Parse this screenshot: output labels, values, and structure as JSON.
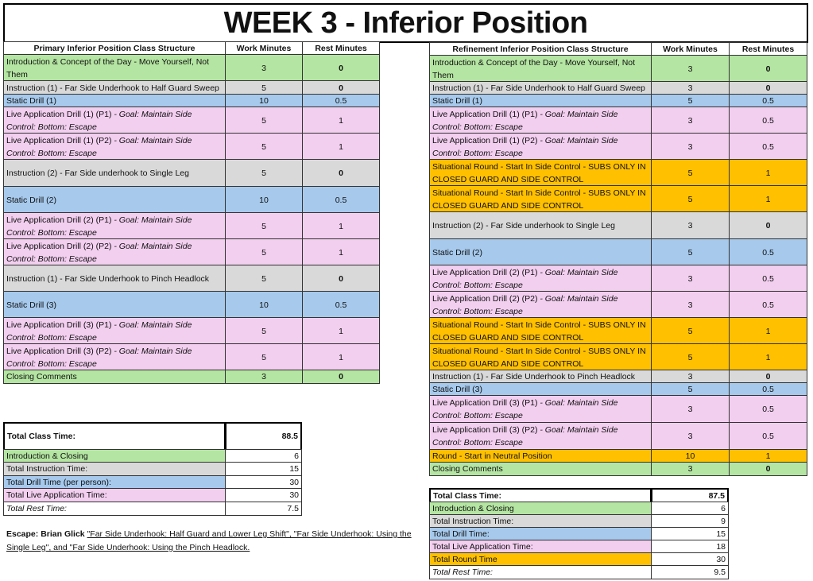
{
  "title": "WEEK 3 - Inferior Position",
  "colors": {
    "intro": "#b4e5a2",
    "instruction": "#d9d9d9",
    "drill": "#a6c9ec",
    "live": "#f2ceef",
    "round": "#ffc000",
    "rest": "#ffffff"
  },
  "primary": {
    "headers": [
      "Primary Inferior Position Class Structure",
      "Work Minutes",
      "Rest Minutes"
    ],
    "rows": [
      {
        "type": "intro",
        "label": "Introduction & Concept of the Day - Move Yourself, Not Them",
        "goal": "",
        "work": "3",
        "rest": "0"
      },
      {
        "type": "instruction",
        "label": "Instruction (1) - Far Side Underhook to Half Guard Sweep",
        "goal": "",
        "work": "5",
        "rest": "0"
      },
      {
        "type": "drill",
        "label": "Static Drill (1)",
        "goal": "",
        "work": "10",
        "rest": "0.5"
      },
      {
        "type": "live",
        "label": "Live Application Drill (1) (P1) ",
        "goal": " - Goal: Maintain Side Control: Bottom: Escape",
        "work": "5",
        "rest": "1"
      },
      {
        "type": "live",
        "label": "Live Application Drill (1) (P2) ",
        "goal": " - Goal: Maintain Side Control: Bottom: Escape",
        "work": "5",
        "rest": "1"
      },
      {
        "type": "instruction",
        "label": "Instruction (2) - Far Side underhook to Single Leg",
        "goal": "",
        "work": "5",
        "rest": "0"
      },
      {
        "type": "drill",
        "label": "Static Drill (2)",
        "goal": "",
        "work": "10",
        "rest": "0.5"
      },
      {
        "type": "live",
        "label": "Live Application Drill (2) (P1) ",
        "goal": " - Goal: Maintain Side Control: Bottom: Escape",
        "work": "5",
        "rest": "1"
      },
      {
        "type": "live",
        "label": "Live Application Drill (2) (P2) ",
        "goal": " - Goal: Maintain Side Control: Bottom: Escape",
        "work": "5",
        "rest": "1"
      },
      {
        "type": "instruction",
        "label": "Instruction (1) - Far Side Underhook to Pinch Headlock",
        "goal": "",
        "work": "5",
        "rest": "0"
      },
      {
        "type": "drill",
        "label": "Static Drill (3)",
        "goal": "",
        "work": "10",
        "rest": "0.5"
      },
      {
        "type": "live",
        "label": "Live Application Drill (3) (P1) ",
        "goal": " - Goal: Maintain Side Control: Bottom: Escape",
        "work": "5",
        "rest": "1"
      },
      {
        "type": "live",
        "label": "Live Application Drill (3) (P2) ",
        "goal": " - Goal: Maintain Side Control: Bottom: Escape",
        "work": "5",
        "rest": "1"
      },
      {
        "type": "intro",
        "label": "Closing Comments",
        "goal": "",
        "work": "3",
        "rest": "0"
      }
    ],
    "summary": {
      "total_label": "Total Class Time:",
      "total_value": "88.5",
      "rows": [
        {
          "type": "intro",
          "label": "Introduction & Closing",
          "value": "6"
        },
        {
          "type": "instruction",
          "label": "Total Instruction Time:",
          "value": "15"
        },
        {
          "type": "drill",
          "label": "Total Drill Time (per person):",
          "value": "30"
        },
        {
          "type": "live",
          "label": "Total Live Application Time:",
          "value": "30"
        },
        {
          "type": "rest",
          "label": "Total Rest Time:",
          "value": "7.5"
        }
      ]
    }
  },
  "refinement": {
    "headers": [
      "Refinement Inferior Position Class Structure",
      "Work Minutes",
      "Rest Minutes"
    ],
    "rows": [
      {
        "type": "intro",
        "label": "Introduction & Concept of the Day - Move Yourself, Not Them",
        "goal": "",
        "work": "3",
        "rest": "0"
      },
      {
        "type": "instruction",
        "label": "Instruction (1) - Far Side Underhook to Half Guard Sweep",
        "goal": "",
        "work": "3",
        "rest": "0"
      },
      {
        "type": "drill",
        "label": "Static Drill (1)",
        "goal": "",
        "work": "5",
        "rest": "0.5"
      },
      {
        "type": "live",
        "label": "Live Application Drill (1) (P1) ",
        "goal": " - Goal: Maintain Side Control: Bottom: Escape",
        "work": "3",
        "rest": "0.5"
      },
      {
        "type": "live",
        "label": "Live Application Drill (1) (P2) ",
        "goal": " - Goal: Maintain Side Control: Bottom: Escape",
        "work": "3",
        "rest": "0.5"
      },
      {
        "type": "round",
        "label": "Situational Round - Start In Side Control - SUBS ONLY IN CLOSED GUARD AND  SIDE CONTROL",
        "goal": "",
        "work": "5",
        "rest": "1"
      },
      {
        "type": "round",
        "label": "Situational Round - Start In Side Control - SUBS ONLY IN CLOSED GUARD AND  SIDE CONTROL",
        "goal": "",
        "work": "5",
        "rest": "1"
      },
      {
        "type": "instruction",
        "label": "Instruction (2) - Far Side underhook to Single Leg",
        "goal": "",
        "work": "3",
        "rest": "0"
      },
      {
        "type": "drill",
        "label": "Static Drill (2)",
        "goal": "",
        "work": "5",
        "rest": "0.5"
      },
      {
        "type": "live",
        "label": "Live Application Drill (2) (P1) ",
        "goal": " - Goal: Maintain Side Control: Bottom: Escape",
        "work": "3",
        "rest": "0.5"
      },
      {
        "type": "live",
        "label": "Live Application Drill (2) (P2) ",
        "goal": " - Goal: Maintain Side Control: Bottom: Escape",
        "work": "3",
        "rest": "0.5"
      },
      {
        "type": "round",
        "label": "Situational Round - Start In Side Control - SUBS ONLY IN CLOSED GUARD AND  SIDE CONTROL",
        "goal": "",
        "work": "5",
        "rest": "1"
      },
      {
        "type": "round",
        "label": "Situational Round - Start In Side Control - SUBS ONLY IN CLOSED GUARD AND  SIDE CONTROL",
        "goal": "",
        "work": "5",
        "rest": "1"
      },
      {
        "type": "instruction",
        "label": "Instruction (1) - Far Side Underhook to Pinch Headlock",
        "goal": "",
        "work": "3",
        "rest": "0"
      },
      {
        "type": "drill",
        "label": "Static Drill (3)",
        "goal": "",
        "work": "5",
        "rest": "0.5"
      },
      {
        "type": "live",
        "label": "Live Application Drill (3) (P1) ",
        "goal": " - Goal: Maintain Side Control: Bottom: Escape",
        "work": "3",
        "rest": "0.5"
      },
      {
        "type": "live",
        "label": "Live Application Drill (3) (P2) ",
        "goal": " - Goal: Maintain Side Control: Bottom: Escape",
        "work": "3",
        "rest": "0.5"
      },
      {
        "type": "round",
        "label": "Round - Start in Neutral Position",
        "goal": "",
        "work": "10",
        "rest": "1"
      },
      {
        "type": "intro",
        "label": "Closing Comments",
        "goal": "",
        "work": "3",
        "rest": "0"
      }
    ],
    "summary": {
      "total_label": "Total Class Time:",
      "total_value": "87.5",
      "rows": [
        {
          "type": "intro",
          "label": "Introduction & Closing",
          "value": "6"
        },
        {
          "type": "instruction",
          "label": "Total Instruction Time:",
          "value": "9"
        },
        {
          "type": "drill",
          "label": "Total Drill Time:",
          "value": "15"
        },
        {
          "type": "live",
          "label": "Total Live Application Time:",
          "value": "18"
        },
        {
          "type": "round",
          "label": "Total Round Time",
          "value": "30"
        },
        {
          "type": "rest",
          "label": "Total Rest Time:",
          "value": "9.5"
        }
      ]
    }
  },
  "note": {
    "prefix": "Escape: Brian Glick ",
    "link": "\"Far Side Underhook: Half Guard and Lower Leg Shift\",  \"Far Side Underhook: Using the Single Leg\", and \"Far Side Underhook: Using the Pinch Headlock."
  }
}
